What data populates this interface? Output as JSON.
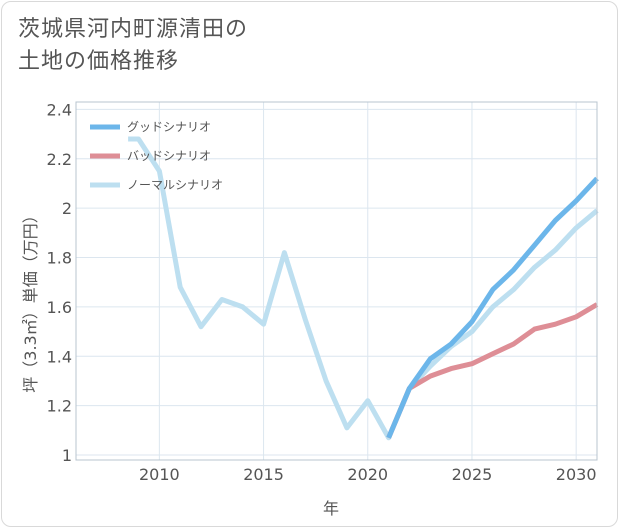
{
  "title_lines": [
    "茨城県河内町源清田の",
    "土地の価格推移"
  ],
  "chart_data": {
    "type": "line",
    "xlabel": "年",
    "ylabel": "坪（3.3㎡）単価（万円）",
    "xlim": [
      2006,
      2031
    ],
    "ylim": [
      0.98,
      2.43
    ],
    "x_ticks": [
      2010,
      2015,
      2020,
      2025,
      2030
    ],
    "x_tick_labels": [
      "2010",
      "2015",
      "2020",
      "2025",
      "2030"
    ],
    "y_ticks": [
      1,
      1.2,
      1.4,
      1.6,
      1.8,
      2,
      2.2,
      2.4
    ],
    "y_tick_labels": [
      "1",
      "1.2",
      "1.4",
      "1.6",
      "1.8",
      "2",
      "2.2",
      "2.4"
    ],
    "grid": true,
    "legend_position": "top-left",
    "series": [
      {
        "name": "グッドシナリオ",
        "color": "#6cb6ea",
        "x": [
          2021,
          2022,
          2023,
          2024,
          2025,
          2026,
          2027,
          2028,
          2029,
          2030,
          2031
        ],
        "y": [
          1.07,
          1.27,
          1.39,
          1.45,
          1.54,
          1.67,
          1.75,
          1.85,
          1.95,
          2.03,
          2.12
        ]
      },
      {
        "name": "バッドシナリオ",
        "color": "#de8e96",
        "x": [
          2021,
          2022,
          2023,
          2024,
          2025,
          2026,
          2027,
          2028,
          2029,
          2030,
          2031
        ],
        "y": [
          1.07,
          1.27,
          1.32,
          1.35,
          1.37,
          1.41,
          1.45,
          1.51,
          1.53,
          1.56,
          1.61
        ]
      },
      {
        "name": "ノーマルシナリオ",
        "color": "#bddff0",
        "x": [
          2008.5,
          2009,
          2010,
          2011,
          2012,
          2013,
          2014,
          2015,
          2016,
          2017,
          2018,
          2019,
          2020,
          2021,
          2022,
          2023,
          2024,
          2025,
          2026,
          2027,
          2028,
          2029,
          2030,
          2031
        ],
        "y": [
          2.28,
          2.28,
          2.15,
          1.68,
          1.52,
          1.63,
          1.6,
          1.53,
          1.82,
          1.55,
          1.3,
          1.11,
          1.22,
          1.07,
          1.27,
          1.36,
          1.44,
          1.5,
          1.6,
          1.67,
          1.76,
          1.83,
          1.92,
          1.99
        ]
      }
    ]
  }
}
